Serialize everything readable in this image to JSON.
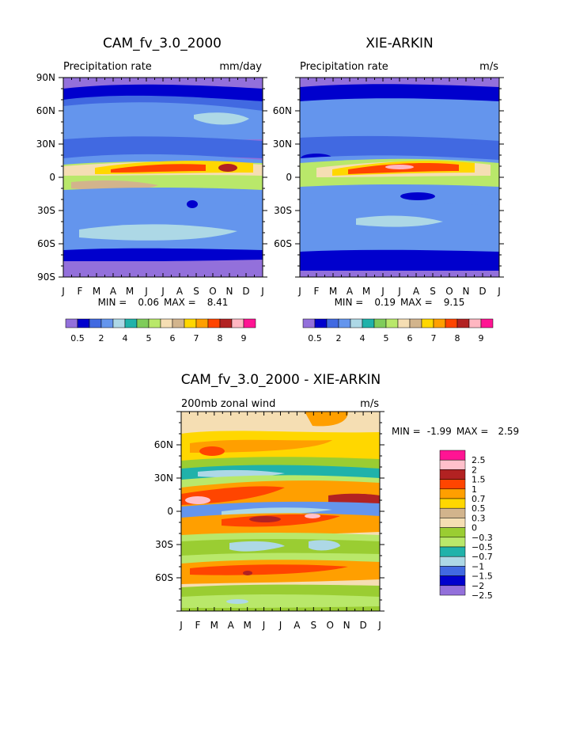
{
  "palette": {
    "precip": [
      "#9370db",
      "#0000cd",
      "#4169e1",
      "#6495ed",
      "#add8e6",
      "#20b2aa",
      "#7fcc5a",
      "#b9e86a",
      "#f5deb3",
      "#d2b48c",
      "#ffd700",
      "#ff9f00",
      "#ff4500",
      "#b22222",
      "#ffb6c1",
      "#ff1493"
    ],
    "wind": [
      "#ff1493",
      "#ffc0cb",
      "#b22222",
      "#ff4500",
      "#ff9f00",
      "#ffd700",
      "#d2b48c",
      "#f5deb3",
      "#9acd32",
      "#b9e86a",
      "#20b2aa",
      "#add8e6",
      "#4169e1",
      "#0000cd",
      "#9370db"
    ]
  },
  "chart_data": [
    {
      "type": "heatmap",
      "title": "CAM_fv_3.0_2000",
      "variable": "Precipitation rate",
      "units": "mm/day",
      "months": [
        "J",
        "F",
        "M",
        "A",
        "M",
        "J",
        "J",
        "A",
        "S",
        "O",
        "N",
        "D",
        "J"
      ],
      "lat_ticks": [
        "90N",
        "60N",
        "30N",
        "0",
        "30S",
        "60S",
        "90S"
      ],
      "stats": {
        "min_label": "MIN =",
        "min": "0.06",
        "max_label": "MAX =",
        "max": "8.41"
      },
      "colorbar_labels": [
        "0.5",
        "2",
        "4",
        "5",
        "6",
        "7",
        "8",
        "9"
      ]
    },
    {
      "type": "heatmap",
      "title": "XIE-ARKIN",
      "variable": "Precipitation rate",
      "units": "m/s",
      "months": [
        "J",
        "F",
        "M",
        "A",
        "M",
        "J",
        "J",
        "A",
        "S",
        "O",
        "N",
        "D",
        "J"
      ],
      "lat_ticks": [
        "60N",
        "30N",
        "0",
        "30S",
        "60S"
      ],
      "stats": {
        "min_label": "MIN =",
        "min": "0.19",
        "max_label": "MAX =",
        "max": "9.15"
      },
      "colorbar_labels": [
        "0.5",
        "2",
        "4",
        "5",
        "6",
        "7",
        "8",
        "9"
      ]
    },
    {
      "type": "heatmap",
      "title": "CAM_fv_3.0_2000 - XIE-ARKIN",
      "variable": "200mb zonal wind",
      "units": "m/s",
      "months": [
        "J",
        "F",
        "M",
        "A",
        "M",
        "J",
        "J",
        "A",
        "S",
        "O",
        "N",
        "D",
        "J"
      ],
      "lat_ticks": [
        "60N",
        "30N",
        "0",
        "30S",
        "60S"
      ],
      "stats": {
        "min_label": "MIN =",
        "min": "-1.99",
        "max_label": "MAX =",
        "max": "2.59"
      },
      "colorbar_labels": [
        "2.5",
        "2",
        "1.5",
        "1",
        "0.7",
        "0.5",
        "0.3",
        "0",
        "-0.3",
        "-0.5",
        "-0.7",
        "-1",
        "-1.5",
        "-2",
        "-2.5"
      ]
    }
  ]
}
